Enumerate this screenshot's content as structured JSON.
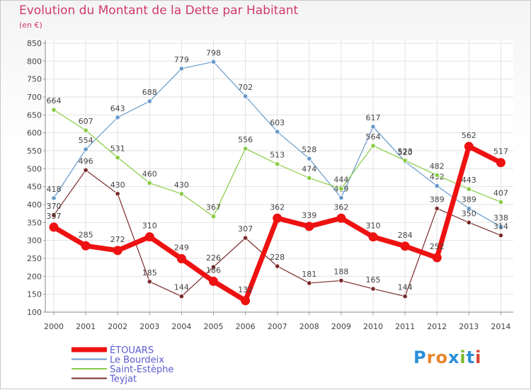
{
  "header": {
    "title": "Evolution du Montant de la Dette par Habitant",
    "subtitle": "(en €)"
  },
  "brand": {
    "logo_text": "Proxiti"
  },
  "chart_data": {
    "type": "line",
    "title": "Evolution du Montant de la Dette par Habitant",
    "subtitle": "(en €)",
    "xlabel": "",
    "ylabel": "",
    "x": [
      "2000",
      "2001",
      "2002",
      "2003",
      "2004",
      "2005",
      "2006",
      "2007",
      "2008",
      "2009",
      "2010",
      "2011",
      "2012",
      "2013",
      "2014"
    ],
    "ylim": [
      100,
      850
    ],
    "yticks": [
      100,
      150,
      200,
      250,
      300,
      350,
      400,
      450,
      500,
      550,
      600,
      650,
      700,
      750,
      800,
      850
    ],
    "grid": true,
    "legend_position": "bottom-left",
    "series": [
      {
        "name": "ÉTOUARS",
        "color": "#ee1111",
        "values": [
          337,
          285,
          272,
          310,
          249,
          186,
          132,
          362,
          339,
          362,
          310,
          284,
          252,
          562,
          517
        ]
      },
      {
        "name": "Le Bourdeix",
        "color": "#6699cc",
        "values": [
          418,
          554,
          643,
          688,
          779,
          798,
          702,
          603,
          528,
          419,
          617,
          520,
          452,
          389,
          338
        ]
      },
      {
        "name": "Saint-Estèphe",
        "color": "#88cc44",
        "values": [
          664,
          607,
          531,
          460,
          430,
          367,
          556,
          513,
          474,
          444,
          564,
          523,
          482,
          443,
          407
        ]
      },
      {
        "name": "Teyjat",
        "color": "#7a2a2a",
        "values": [
          370,
          496,
          430,
          185,
          144,
          226,
          307,
          228,
          181,
          188,
          165,
          144,
          389,
          350,
          314
        ]
      }
    ]
  }
}
